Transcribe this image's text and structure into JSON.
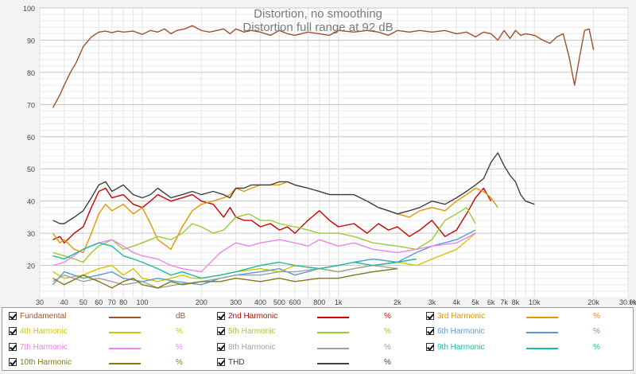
{
  "chart_data": {
    "type": "line",
    "title": "Distortion, no smoothing",
    "subtitle": "Distortion full range at 92 dB",
    "xscale": "log",
    "xlim": [
      30,
      30000
    ],
    "ylim": [
      10,
      100
    ],
    "grid": true,
    "x_ticks": [
      {
        "v": 30,
        "label": "30"
      },
      {
        "v": 40,
        "label": "40"
      },
      {
        "v": 50,
        "label": "50"
      },
      {
        "v": 60,
        "label": "60"
      },
      {
        "v": 70,
        "label": "70"
      },
      {
        "v": 80,
        "label": "80"
      },
      {
        "v": 100,
        "label": "100"
      },
      {
        "v": 200,
        "label": "200"
      },
      {
        "v": 300,
        "label": "300"
      },
      {
        "v": 400,
        "label": "400"
      },
      {
        "v": 500,
        "label": "500"
      },
      {
        "v": 600,
        "label": "600"
      },
      {
        "v": 800,
        "label": "800"
      },
      {
        "v": 1000,
        "label": "1k"
      },
      {
        "v": 2000,
        "label": "2k"
      },
      {
        "v": 3000,
        "label": "3k"
      },
      {
        "v": 4000,
        "label": "4k"
      },
      {
        "v": 5000,
        "label": "5k"
      },
      {
        "v": 6000,
        "label": "6k"
      },
      {
        "v": 7000,
        "label": "7k"
      },
      {
        "v": 8000,
        "label": "8k"
      },
      {
        "v": 10000,
        "label": "10k"
      },
      {
        "v": 20000,
        "label": "20k"
      },
      {
        "v": 30000,
        "label": "30.0k"
      }
    ],
    "x_unit": "Hz",
    "y_ticks": [
      20,
      30,
      40,
      50,
      60,
      70,
      80,
      90,
      100
    ],
    "series": [
      {
        "name": "Fundamental",
        "unit": "dB",
        "color": "#a0522d",
        "x": [
          35,
          38,
          40,
          43,
          46,
          50,
          55,
          60,
          65,
          70,
          75,
          80,
          90,
          100,
          110,
          120,
          130,
          140,
          150,
          165,
          180,
          200,
          220,
          240,
          260,
          280,
          300,
          330,
          360,
          400,
          450,
          500,
          550,
          600,
          700,
          800,
          900,
          1000,
          1200,
          1400,
          1600,
          1800,
          2000,
          2300,
          2600,
          3000,
          3500,
          4000,
          4500,
          5000,
          5500,
          6000,
          6500,
          7000,
          7500,
          8000,
          8500,
          9000,
          10000,
          11000,
          12000,
          13000,
          14000,
          15000,
          16000,
          17000,
          18000,
          19000,
          20000
        ],
        "y": [
          69,
          73,
          76,
          80,
          83,
          88,
          91,
          92.5,
          92.8,
          92.3,
          92.8,
          92.5,
          92.8,
          91.8,
          93,
          92.5,
          93.5,
          92,
          93,
          93.5,
          94.5,
          93,
          92.5,
          93,
          93.5,
          92,
          93.5,
          92.5,
          93,
          92.5,
          91.5,
          93,
          92,
          91.5,
          92.5,
          92,
          91.5,
          93,
          92.5,
          93,
          92.5,
          91.5,
          93,
          92.5,
          93,
          92.5,
          93,
          92,
          92.5,
          91,
          92.5,
          92,
          90,
          93,
          90.5,
          93,
          91.5,
          92,
          91.5,
          90,
          89,
          91,
          92,
          85,
          76,
          85,
          93,
          93.5,
          87
        ]
      },
      {
        "name": "2nd Harmonic",
        "unit": "%",
        "color": "#cc0000",
        "x": [
          35,
          38,
          40,
          45,
          50,
          55,
          60,
          65,
          70,
          80,
          90,
          100,
          110,
          120,
          140,
          160,
          180,
          200,
          230,
          260,
          280,
          300,
          330,
          360,
          400,
          450,
          500,
          550,
          600,
          700,
          800,
          900,
          1000,
          1200,
          1400,
          1600,
          1800,
          2000,
          2300,
          2600,
          3000,
          3500,
          4000,
          4500,
          5000,
          5500,
          6000
        ],
        "y": [
          28,
          29,
          27,
          30,
          32,
          38,
          43,
          44,
          41,
          42,
          39,
          38,
          40,
          42,
          40,
          41,
          42,
          40,
          39,
          35,
          38,
          35,
          34,
          34,
          32,
          33,
          31,
          32,
          30,
          34,
          37,
          34,
          32,
          33,
          30,
          33,
          31,
          32,
          29,
          31,
          34,
          29,
          31,
          36,
          41,
          44,
          40
        ]
      },
      {
        "name": "3rd Harmonic",
        "unit": "%",
        "color": "#e69500",
        "x": [
          35,
          38,
          40,
          45,
          50,
          55,
          60,
          65,
          70,
          80,
          90,
          100,
          110,
          120,
          140,
          160,
          180,
          200,
          230,
          260,
          280,
          300,
          330,
          360,
          400,
          450,
          500,
          550,
          600,
          700,
          800,
          900,
          1000,
          1200,
          1400,
          1600,
          1800,
          2000,
          2300,
          2600,
          3000,
          3500,
          4000,
          4500,
          5000,
          5500,
          6000,
          6500
        ],
        "y": [
          30,
          27,
          28,
          25,
          24,
          30,
          36,
          39,
          37,
          39,
          36,
          38,
          33,
          28,
          25,
          32,
          37,
          39,
          40,
          41,
          42,
          44,
          43,
          44,
          45,
          45,
          45,
          46,
          45,
          44,
          43,
          42,
          42,
          42,
          40,
          38,
          37,
          36,
          35,
          37,
          38,
          37,
          40,
          42,
          44,
          43,
          41,
          38
        ]
      },
      {
        "name": "4th Harmonic",
        "unit": "%",
        "color": "#d4c400",
        "x": [
          35,
          40,
          50,
          60,
          70,
          80,
          90,
          100,
          120,
          140,
          160,
          180,
          200,
          250,
          300,
          400,
          500,
          600,
          800,
          1000,
          1200,
          1500,
          2000,
          2500,
          3000,
          4000,
          5000
        ],
        "y": [
          18,
          16,
          17,
          19,
          20,
          17,
          19,
          16,
          15,
          16,
          17,
          16,
          16,
          17,
          18,
          19,
          18,
          20,
          19,
          18,
          19,
          20,
          21,
          20,
          22,
          25,
          30
        ]
      },
      {
        "name": "5th Harmonic",
        "unit": "%",
        "color": "#99cc33",
        "x": [
          35,
          40,
          45,
          50,
          55,
          60,
          70,
          80,
          90,
          100,
          120,
          140,
          160,
          180,
          200,
          230,
          260,
          300,
          350,
          400,
          450,
          500,
          600,
          700,
          800,
          1000,
          1200,
          1500,
          2000,
          2500,
          3000,
          3500,
          4000,
          4500,
          5000
        ],
        "y": [
          24,
          23,
          22,
          21,
          24,
          26,
          28,
          25,
          26,
          27,
          29,
          28,
          30,
          33,
          32,
          30,
          31,
          35,
          36,
          34,
          34,
          33,
          32,
          31,
          30,
          30,
          29,
          27,
          26,
          25,
          28,
          34,
          36,
          38,
          33
        ]
      },
      {
        "name": "6th Harmonic",
        "unit": "%",
        "color": "#5b9bd5",
        "x": [
          35,
          40,
          50,
          60,
          70,
          80,
          100,
          120,
          150,
          200,
          250,
          300,
          400,
          500,
          600,
          800,
          1000,
          1200,
          1500,
          2000,
          2500,
          3000,
          4000,
          5000
        ],
        "y": [
          14,
          18,
          16,
          17,
          18,
          16,
          15,
          16,
          15,
          14,
          16,
          17,
          18,
          19,
          17,
          19,
          20,
          21,
          22,
          21,
          24,
          26,
          28,
          31
        ]
      },
      {
        "name": "7th Harmonic",
        "unit": "%",
        "color": "#ee82ee",
        "x": [
          35,
          40,
          50,
          60,
          70,
          80,
          90,
          100,
          120,
          140,
          160,
          200,
          250,
          300,
          350,
          400,
          500,
          600,
          700,
          800,
          1000,
          1200,
          1500,
          2000,
          2500,
          3000,
          4000,
          5000
        ],
        "y": [
          20,
          21,
          25,
          27,
          28,
          26,
          24,
          23,
          22,
          20,
          19,
          18,
          24,
          27,
          26,
          27,
          28,
          27,
          26,
          28,
          26,
          27,
          25,
          24,
          25,
          26,
          27,
          30
        ]
      },
      {
        "name": "8th Harmonic",
        "unit": "%",
        "color": "#a0a0a0",
        "x": [
          35,
          40,
          50,
          60,
          70,
          80,
          100,
          120,
          150,
          200,
          250,
          300,
          400,
          500,
          600,
          800,
          1000,
          1200,
          1500,
          2000
        ],
        "y": [
          15,
          17,
          15,
          16,
          15,
          14,
          15,
          13,
          14,
          15,
          16,
          17,
          17,
          18,
          18,
          19,
          18,
          19,
          20,
          19
        ]
      },
      {
        "name": "9th Harmonic",
        "unit": "%",
        "color": "#1abc9c",
        "x": [
          35,
          40,
          50,
          60,
          70,
          80,
          90,
          100,
          120,
          140,
          160,
          200,
          250,
          300,
          400,
          500,
          600,
          800,
          1000,
          1200,
          1500,
          2000,
          2500
        ],
        "y": [
          23,
          22,
          25,
          27,
          26,
          23,
          22,
          21,
          19,
          17,
          18,
          16,
          17,
          18,
          20,
          21,
          20,
          19,
          20,
          21,
          20,
          21,
          22
        ]
      },
      {
        "name": "10th Harmonic",
        "unit": "%",
        "color": "#807a10",
        "x": [
          35,
          40,
          50,
          60,
          70,
          80,
          90,
          100,
          120,
          140,
          160,
          200,
          250,
          300,
          400,
          500,
          600,
          800,
          1000,
          1200,
          1500,
          2000
        ],
        "y": [
          16,
          14,
          17,
          15,
          13,
          15,
          16,
          14,
          13,
          15,
          14,
          15,
          15,
          16,
          15,
          16,
          15,
          16,
          16,
          17,
          18,
          19
        ]
      },
      {
        "name": "THD",
        "unit": "%",
        "color": "#404040",
        "x": [
          35,
          38,
          40,
          45,
          50,
          55,
          60,
          65,
          70,
          80,
          90,
          100,
          110,
          120,
          140,
          160,
          180,
          200,
          230,
          260,
          280,
          300,
          330,
          360,
          400,
          450,
          500,
          550,
          600,
          700,
          800,
          900,
          1000,
          1200,
          1400,
          1600,
          1800,
          2000,
          2300,
          2600,
          3000,
          3500,
          4000,
          4500,
          5000,
          5500,
          6000,
          6500,
          7000,
          7500,
          8000,
          8500,
          9000,
          10000
        ],
        "y": [
          34,
          33,
          33,
          35,
          37,
          41,
          45,
          46,
          43,
          45,
          42,
          41,
          42,
          44,
          41,
          42,
          43,
          42,
          43,
          42,
          41,
          44,
          44,
          45,
          45,
          45,
          46,
          46,
          45,
          44,
          43,
          42,
          42,
          42,
          40,
          38,
          37,
          36,
          37,
          38,
          40,
          39,
          41,
          43,
          45,
          47,
          52,
          55,
          51,
          48,
          46,
          42,
          40,
          39
        ]
      }
    ]
  }
}
